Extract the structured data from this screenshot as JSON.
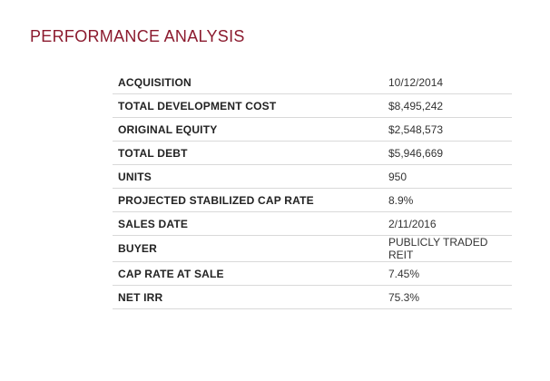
{
  "colors": {
    "title": "#8b1a2e",
    "row_divider": "#d9d9d9"
  },
  "section": {
    "title": "PERFORMANCE ANALYSIS"
  },
  "metrics": [
    {
      "label": "ACQUISITION",
      "value": "10/12/2014"
    },
    {
      "label": "TOTAL DEVELOPMENT COST",
      "value": "$8,495,242"
    },
    {
      "label": "ORIGINAL EQUITY",
      "value": "$2,548,573"
    },
    {
      "label": "TOTAL DEBT",
      "value": "$5,946,669"
    },
    {
      "label": "UNITS",
      "value": "950"
    },
    {
      "label": "PROJECTED STABILIZED CAP RATE",
      "value": "8.9%"
    },
    {
      "label": "SALES DATE",
      "value": "2/11/2016"
    },
    {
      "label": "BUYER",
      "value": "PUBLICLY TRADED REIT"
    },
    {
      "label": "CAP RATE AT SALE",
      "value": "7.45%"
    },
    {
      "label": "NET IRR",
      "value": "75.3%"
    }
  ]
}
